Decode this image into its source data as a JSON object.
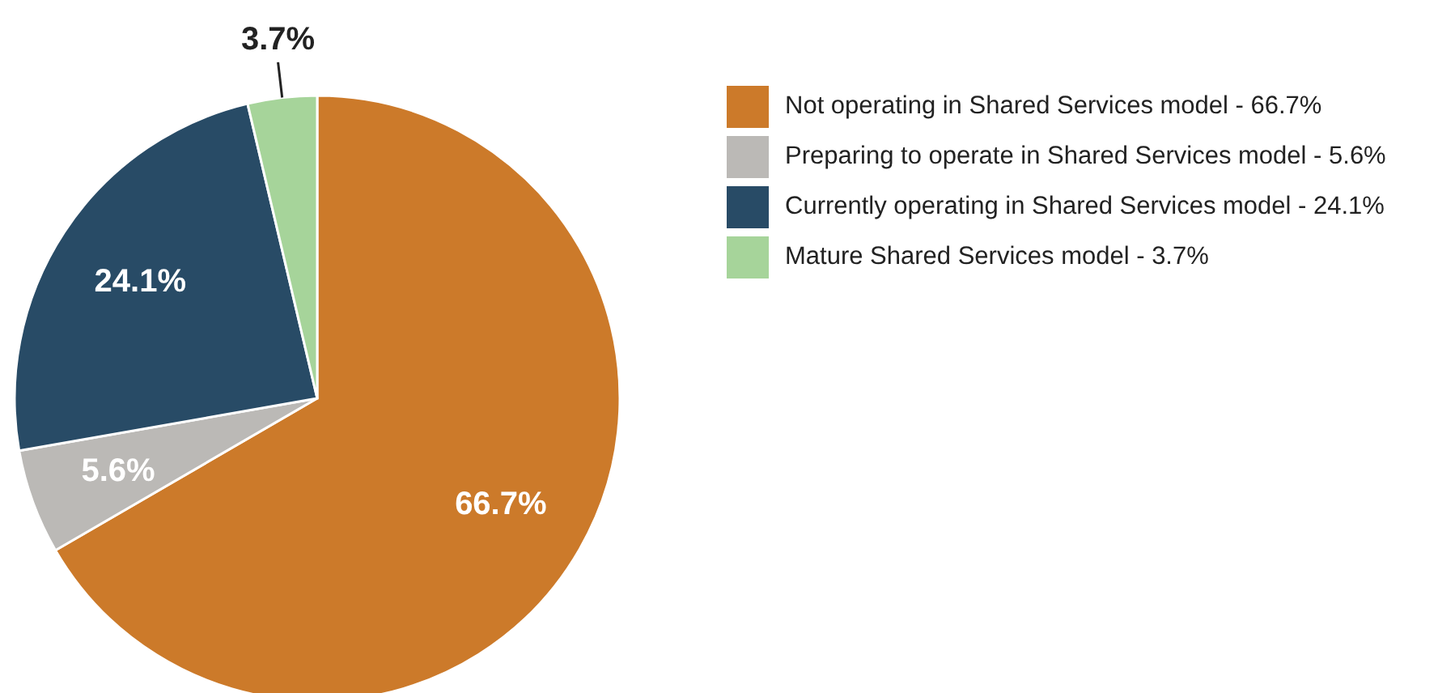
{
  "chart_data": {
    "type": "pie",
    "categories": [
      "Not operating in Shared Services model - 66.7%",
      "Preparing to operate in Shared Services model - 5.6%",
      "Currently operating in Shared Services model - 24.1%",
      "Mature Shared Services model - 3.7%"
    ],
    "values": [
      66.7,
      5.6,
      24.1,
      3.7
    ],
    "colors": [
      "#cc7a2a",
      "#bbb9b6",
      "#284b66",
      "#a6d49a"
    ],
    "value_labels": [
      "66.7%",
      "5.6%",
      "24.1%",
      "3.7%"
    ],
    "legend": "right"
  }
}
